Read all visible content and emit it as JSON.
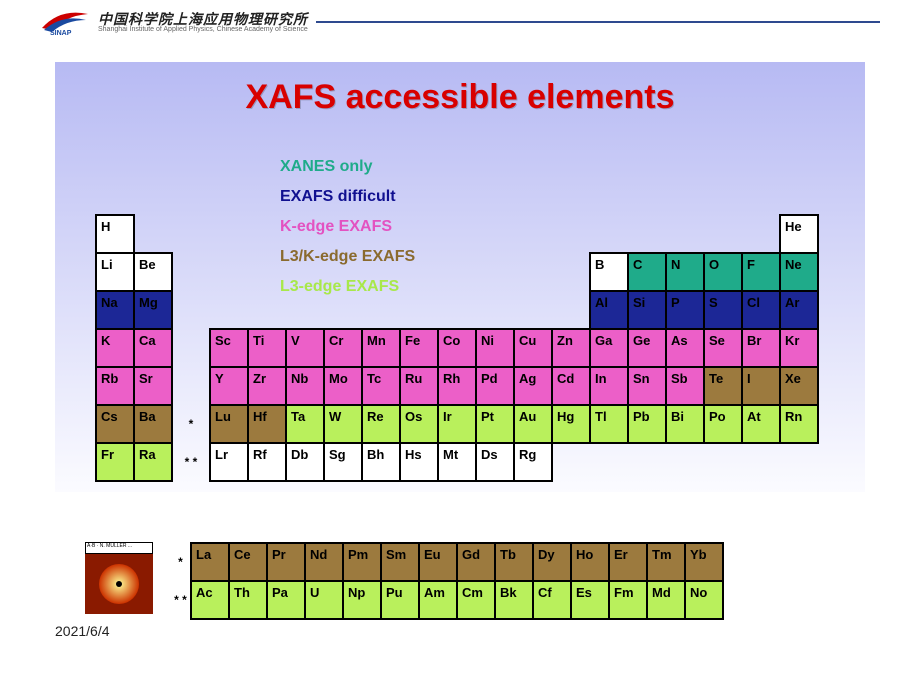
{
  "header": {
    "cn": "中国科学院上海应用物理研究所",
    "en": "Shanghai Institute of Applied Physics, Chinese Academy of Science",
    "sinap": "SINAP",
    "line_color": "#2e4a8f"
  },
  "slide": {
    "title": "XAFS accessible elements",
    "title_color": "#d80000",
    "bg_grad_top": "#b7baf3",
    "bg_grad_bottom": "#fbfbff",
    "date": "2021/6/4"
  },
  "legend": [
    {
      "label": "XANES only",
      "color": "#1fab8a"
    },
    {
      "label": "EXAFS difficult",
      "color": "#101090"
    },
    {
      "label": "K-edge EXAFS",
      "color": "#e352c1"
    },
    {
      "label": "L3/K-edge EXAFS",
      "color": "#8a6a2e"
    },
    {
      "label": "L3-edge EXAFS",
      "color": "#a8e84a"
    }
  ],
  "colors": {
    "white": "#ffffff",
    "teal": "#1fab8a",
    "navy": "#1c2796",
    "magenta": "#ec5fc8",
    "brown": "#9c7a3e",
    "lime": "#b9f05c",
    "teal_txt": "#000000",
    "navy_txt": "#000000"
  },
  "rows": [
    [
      {
        "s": "H",
        "c": "white"
      },
      null,
      null,
      null,
      null,
      null,
      null,
      null,
      null,
      null,
      null,
      null,
      null,
      null,
      null,
      null,
      null,
      null,
      {
        "s": "He",
        "c": "white"
      }
    ],
    [
      {
        "s": "Li",
        "c": "white"
      },
      {
        "s": "Be",
        "c": "white"
      },
      null,
      null,
      null,
      null,
      null,
      null,
      null,
      null,
      null,
      null,
      null,
      {
        "s": "B",
        "c": "white"
      },
      {
        "s": "C",
        "c": "teal"
      },
      {
        "s": "N",
        "c": "teal"
      },
      {
        "s": "O",
        "c": "teal"
      },
      {
        "s": "F",
        "c": "teal"
      },
      {
        "s": "Ne",
        "c": "teal"
      }
    ],
    [
      {
        "s": "Na",
        "c": "navy"
      },
      {
        "s": "Mg",
        "c": "navy"
      },
      null,
      null,
      null,
      null,
      null,
      null,
      null,
      null,
      null,
      null,
      null,
      {
        "s": "Al",
        "c": "navy"
      },
      {
        "s": "Si",
        "c": "navy"
      },
      {
        "s": "P",
        "c": "navy"
      },
      {
        "s": "S",
        "c": "navy"
      },
      {
        "s": "Cl",
        "c": "navy"
      },
      {
        "s": "Ar",
        "c": "navy"
      }
    ],
    [
      {
        "s": "K",
        "c": "magenta"
      },
      {
        "s": "Ca",
        "c": "magenta"
      },
      null,
      {
        "s": "Sc",
        "c": "magenta"
      },
      {
        "s": "Ti",
        "c": "magenta"
      },
      {
        "s": "V",
        "c": "magenta"
      },
      {
        "s": "Cr",
        "c": "magenta"
      },
      {
        "s": "Mn",
        "c": "magenta"
      },
      {
        "s": "Fe",
        "c": "magenta"
      },
      {
        "s": "Co",
        "c": "magenta"
      },
      {
        "s": "Ni",
        "c": "magenta"
      },
      {
        "s": "Cu",
        "c": "magenta"
      },
      {
        "s": "Zn",
        "c": "magenta"
      },
      {
        "s": "Ga",
        "c": "magenta"
      },
      {
        "s": "Ge",
        "c": "magenta"
      },
      {
        "s": "As",
        "c": "magenta"
      },
      {
        "s": "Se",
        "c": "magenta"
      },
      {
        "s": "Br",
        "c": "magenta"
      },
      {
        "s": "Kr",
        "c": "magenta"
      }
    ],
    [
      {
        "s": "Rb",
        "c": "magenta"
      },
      {
        "s": "Sr",
        "c": "magenta"
      },
      null,
      {
        "s": "Y",
        "c": "magenta"
      },
      {
        "s": "Zr",
        "c": "magenta"
      },
      {
        "s": "Nb",
        "c": "magenta"
      },
      {
        "s": "Mo",
        "c": "magenta"
      },
      {
        "s": "Tc",
        "c": "magenta"
      },
      {
        "s": "Ru",
        "c": "magenta"
      },
      {
        "s": "Rh",
        "c": "magenta"
      },
      {
        "s": "Pd",
        "c": "magenta"
      },
      {
        "s": "Ag",
        "c": "magenta"
      },
      {
        "s": "Cd",
        "c": "magenta"
      },
      {
        "s": "In",
        "c": "magenta"
      },
      {
        "s": "Sn",
        "c": "magenta"
      },
      {
        "s": "Sb",
        "c": "magenta"
      },
      {
        "s": "Te",
        "c": "brown"
      },
      {
        "s": "I",
        "c": "brown"
      },
      {
        "s": "Xe",
        "c": "brown"
      }
    ],
    [
      {
        "s": "Cs",
        "c": "brown"
      },
      {
        "s": "Ba",
        "c": "brown"
      },
      {
        "star": "*"
      },
      {
        "s": "Lu",
        "c": "brown"
      },
      {
        "s": "Hf",
        "c": "brown"
      },
      {
        "s": "Ta",
        "c": "lime"
      },
      {
        "s": "W",
        "c": "lime"
      },
      {
        "s": "Re",
        "c": "lime"
      },
      {
        "s": "Os",
        "c": "lime"
      },
      {
        "s": "Ir",
        "c": "lime"
      },
      {
        "s": "Pt",
        "c": "lime"
      },
      {
        "s": "Au",
        "c": "lime"
      },
      {
        "s": "Hg",
        "c": "lime"
      },
      {
        "s": "Tl",
        "c": "lime"
      },
      {
        "s": "Pb",
        "c": "lime"
      },
      {
        "s": "Bi",
        "c": "lime"
      },
      {
        "s": "Po",
        "c": "lime"
      },
      {
        "s": "At",
        "c": "lime"
      },
      {
        "s": "Rn",
        "c": "lime"
      }
    ],
    [
      {
        "s": "Fr",
        "c": "lime"
      },
      {
        "s": "Ra",
        "c": "lime"
      },
      {
        "star": "*\n*"
      },
      {
        "s": "Lr",
        "c": "white"
      },
      {
        "s": "Rf",
        "c": "white"
      },
      {
        "s": "Db",
        "c": "white"
      },
      {
        "s": "Sg",
        "c": "white"
      },
      {
        "s": "Bh",
        "c": "white"
      },
      {
        "s": "Hs",
        "c": "white"
      },
      {
        "s": "Mt",
        "c": "white"
      },
      {
        "s": "Ds",
        "c": "white"
      },
      {
        "s": "Rg",
        "c": "white"
      },
      null,
      null,
      null,
      null,
      null,
      null,
      null
    ]
  ],
  "fblock": [
    {
      "star": "*",
      "cells": [
        {
          "s": "La",
          "c": "brown"
        },
        {
          "s": "Ce",
          "c": "brown"
        },
        {
          "s": "Pr",
          "c": "brown"
        },
        {
          "s": "Nd",
          "c": "brown"
        },
        {
          "s": "Pm",
          "c": "brown"
        },
        {
          "s": "Sm",
          "c": "brown"
        },
        {
          "s": "Eu",
          "c": "brown"
        },
        {
          "s": "Gd",
          "c": "brown"
        },
        {
          "s": "Tb",
          "c": "brown"
        },
        {
          "s": "Dy",
          "c": "brown"
        },
        {
          "s": "Ho",
          "c": "brown"
        },
        {
          "s": "Er",
          "c": "brown"
        },
        {
          "s": "Tm",
          "c": "brown"
        },
        {
          "s": "Yb",
          "c": "brown"
        }
      ]
    },
    {
      "star": "*\n*",
      "cells": [
        {
          "s": "Ac",
          "c": "lime"
        },
        {
          "s": "Th",
          "c": "lime"
        },
        {
          "s": "Pa",
          "c": "lime"
        },
        {
          "s": "U",
          "c": "lime"
        },
        {
          "s": "Np",
          "c": "lime"
        },
        {
          "s": "Pu",
          "c": "lime"
        },
        {
          "s": "Am",
          "c": "lime"
        },
        {
          "s": "Cm",
          "c": "lime"
        },
        {
          "s": "Bk",
          "c": "lime"
        },
        {
          "s": "Cf",
          "c": "lime"
        },
        {
          "s": "Es",
          "c": "lime"
        },
        {
          "s": "Fm",
          "c": "lime"
        },
        {
          "s": "Md",
          "c": "lime"
        },
        {
          "s": "No",
          "c": "lime"
        }
      ]
    }
  ],
  "thumb": {
    "caption": "A·B · N. MÜLLER\n...",
    "orb_gradient_center": "#ffff99",
    "orb_gradient_edge": "#cc3300",
    "orb_bg": "#8a1a00"
  }
}
